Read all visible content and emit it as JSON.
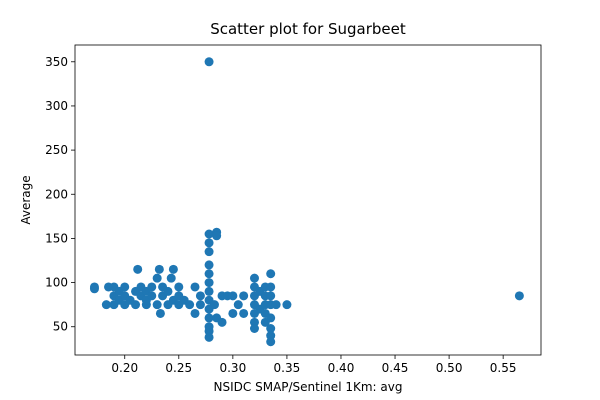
{
  "chart_data": {
    "type": "scatter",
    "title": "Scatter plot for Sugarbeet",
    "xlabel": "NSIDC SMAP/Sentinel 1Km: avg",
    "ylabel": "Average",
    "color": "#1f77b4",
    "x": [
      0.172,
      0.172,
      0.183,
      0.185,
      0.19,
      0.19,
      0.19,
      0.195,
      0.195,
      0.2,
      0.2,
      0.2,
      0.205,
      0.21,
      0.21,
      0.212,
      0.215,
      0.215,
      0.22,
      0.22,
      0.22,
      0.225,
      0.225,
      0.23,
      0.23,
      0.232,
      0.233,
      0.235,
      0.235,
      0.24,
      0.24,
      0.243,
      0.245,
      0.245,
      0.25,
      0.25,
      0.25,
      0.255,
      0.26,
      0.265,
      0.265,
      0.27,
      0.27,
      0.278,
      0.278,
      0.278,
      0.278,
      0.278,
      0.278,
      0.278,
      0.278,
      0.278,
      0.278,
      0.278,
      0.278,
      0.278,
      0.278,
      0.285,
      0.285,
      0.283,
      0.285,
      0.29,
      0.29,
      0.295,
      0.3,
      0.3,
      0.305,
      0.31,
      0.31,
      0.32,
      0.32,
      0.32,
      0.32,
      0.32,
      0.32,
      0.32,
      0.325,
      0.325,
      0.33,
      0.33,
      0.33,
      0.33,
      0.33,
      0.335,
      0.335,
      0.335,
      0.335,
      0.335,
      0.335,
      0.335,
      0.335,
      0.34,
      0.35,
      0.565
    ],
    "values": [
      95,
      93,
      75,
      95,
      75,
      85,
      95,
      80,
      90,
      75,
      85,
      95,
      80,
      75,
      90,
      115,
      85,
      95,
      75,
      80,
      90,
      85,
      95,
      75,
      105,
      115,
      65,
      85,
      95,
      75,
      90,
      105,
      115,
      80,
      75,
      85,
      95,
      80,
      75,
      95,
      65,
      85,
      75,
      350,
      155,
      145,
      135,
      120,
      110,
      100,
      90,
      80,
      70,
      60,
      50,
      45,
      38,
      157,
      153,
      75,
      60,
      55,
      85,
      85,
      85,
      65,
      75,
      65,
      85,
      105,
      95,
      85,
      75,
      65,
      55,
      48,
      90,
      70,
      95,
      85,
      75,
      65,
      55,
      110,
      95,
      85,
      75,
      60,
      48,
      40,
      33,
      75,
      75,
      85
    ],
    "xlim": [
      0.154,
      0.585
    ],
    "ylim": [
      18,
      369
    ],
    "xticks": [
      {
        "value": 0.2,
        "label": "0.20"
      },
      {
        "value": 0.25,
        "label": "0.25"
      },
      {
        "value": 0.3,
        "label": "0.30"
      },
      {
        "value": 0.35,
        "label": "0.35"
      },
      {
        "value": 0.4,
        "label": "0.40"
      },
      {
        "value": 0.45,
        "label": "0.45"
      },
      {
        "value": 0.5,
        "label": "0.50"
      },
      {
        "value": 0.55,
        "label": "0.55"
      }
    ],
    "yticks": [
      50,
      100,
      150,
      200,
      250,
      300,
      350
    ]
  }
}
